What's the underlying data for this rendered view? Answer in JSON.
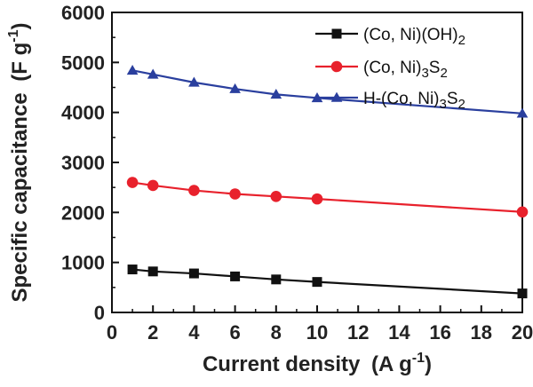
{
  "chart_data": {
    "type": "line",
    "title": "",
    "xlabel_main": "Current density",
    "xlabel_unit_open": "(A g",
    "xlabel_unit_exp": "-1",
    "xlabel_unit_close": ")",
    "ylabel_main": "Specific capacitance",
    "ylabel_unit_open": "(F g",
    "ylabel_unit_exp": "-1",
    "ylabel_unit_close": ")",
    "xlim": [
      0,
      20
    ],
    "ylim": [
      0,
      6000
    ],
    "xticks": [
      "0",
      "2",
      "4",
      "6",
      "8",
      "10",
      "12",
      "14",
      "16",
      "18",
      "20"
    ],
    "yticks": [
      "0",
      "1000",
      "2000",
      "3000",
      "4000",
      "5000",
      "6000"
    ],
    "grid": false,
    "legend_position": "top-right",
    "x": [
      1,
      2,
      4,
      6,
      8,
      10,
      20
    ],
    "series": [
      {
        "name_parts": [
          "(Co, Ni)(OH)",
          "2",
          ""
        ],
        "marker": "square",
        "color": "#111111",
        "values": [
          860,
          820,
          780,
          720,
          660,
          610,
          380
        ]
      },
      {
        "name_parts": [
          "(Co, Ni)",
          "3",
          "S",
          "2",
          ""
        ],
        "marker": "circle",
        "color": "#e8212c",
        "values": [
          2600,
          2540,
          2440,
          2370,
          2320,
          2270,
          2010
        ]
      },
      {
        "name_parts": [
          "H-(Co, Ni)",
          "3",
          "S",
          "2",
          ""
        ],
        "marker": "triangle",
        "color": "#2a3f9e",
        "values": [
          4840,
          4760,
          4600,
          4470,
          4360,
          4290,
          3980
        ]
      }
    ]
  }
}
